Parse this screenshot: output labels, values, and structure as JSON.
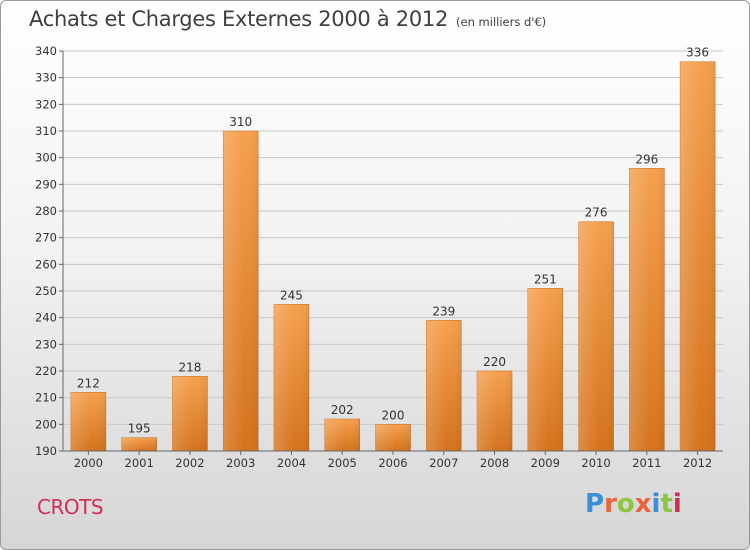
{
  "header": {
    "title": "Achats et Charges Externes 2000 à 2012",
    "unit": "(en milliers d'€)"
  },
  "footer": {
    "commune": "CROTS",
    "brand": "Proxiti",
    "brand_colors": [
      "#3a8fd8",
      "#e8643a",
      "#8cc63f",
      "#e8643a",
      "#3a8fd8",
      "#8cc63f",
      "#d12e55"
    ]
  },
  "chart_data": {
    "type": "bar",
    "categories": [
      "2000",
      "2001",
      "2002",
      "2003",
      "2004",
      "2005",
      "2006",
      "2007",
      "2008",
      "2009",
      "2010",
      "2011",
      "2012"
    ],
    "values": [
      212,
      195,
      218,
      310,
      245,
      202,
      200,
      239,
      220,
      251,
      276,
      296,
      336
    ],
    "ylim": [
      190,
      340
    ],
    "yticks": [
      190,
      200,
      210,
      220,
      230,
      240,
      250,
      260,
      270,
      280,
      290,
      300,
      310,
      320,
      330,
      340
    ],
    "grid": true,
    "bar_color_top": "#f5a04e",
    "bar_color_bottom": "#d4731c"
  }
}
